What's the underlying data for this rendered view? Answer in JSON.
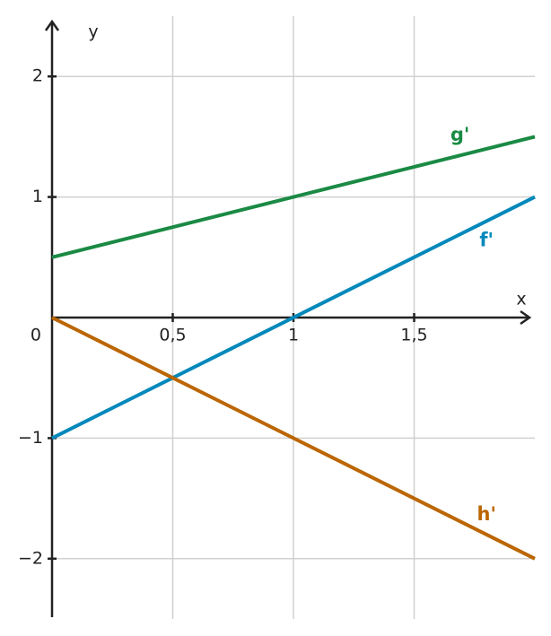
{
  "chart_data": {
    "type": "line",
    "x_label": "x",
    "y_label": "y",
    "x": [
      0,
      2
    ],
    "series": [
      {
        "name": "g'",
        "color": "#1a8a44",
        "values": [
          0.5,
          1.5
        ]
      },
      {
        "name": "f'",
        "color": "#0088bb",
        "values": [
          -1,
          1
        ]
      },
      {
        "name": "h'",
        "color": "#bb6600",
        "values": [
          0,
          -2
        ]
      }
    ],
    "xlim": [
      0,
      2
    ],
    "ylim": [
      -2.5,
      2.5
    ],
    "xticks": [
      {
        "value": 0.5,
        "label": "0,5"
      },
      1,
      {
        "value": 1.5,
        "label": "1,5"
      }
    ],
    "yticks": [
      {
        "value": -2,
        "label": "−2"
      },
      {
        "value": -1,
        "label": "−1"
      },
      0,
      1,
      2
    ],
    "grid": true
  }
}
